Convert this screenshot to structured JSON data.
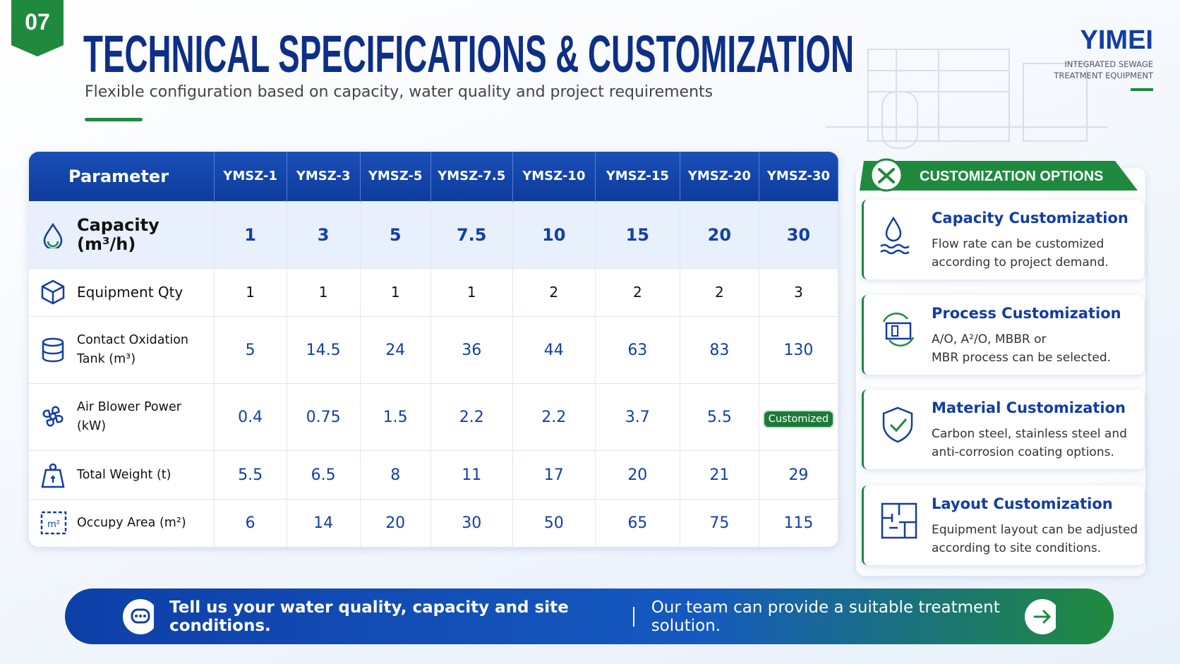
{
  "header": {
    "badge": "07",
    "title": "TECHNICAL SPECIFICATIONS & CUSTOMIZATION",
    "subtitle": "Flexible configuration based on capacity, water quality and project requirements"
  },
  "brand": {
    "name": "YIMEI",
    "tagline": [
      "INTEGRATED SEWAGE",
      "TREATMENT EQUIPMENT"
    ]
  },
  "table": {
    "columns": [
      "Parameter",
      "YMSZ-1",
      "YMSZ-3",
      "YMSZ-5",
      "YMSZ-7.5",
      "YMSZ-10",
      "YMSZ-15",
      "YMSZ-20",
      "YMSZ-30"
    ],
    "rows": [
      {
        "label": "Capacity (m³/h)",
        "values": [
          1,
          3,
          5,
          7.5,
          10,
          15,
          20,
          30
        ]
      },
      {
        "label": "Equipment Qty",
        "values": [
          1,
          1,
          1,
          1,
          2,
          2,
          2,
          3
        ]
      },
      {
        "label": "Contact Oxidation Tank (m³)",
        "values": [
          5,
          14.5,
          24,
          36,
          44,
          63,
          83,
          130
        ]
      },
      {
        "label": "Air Blower Power (kW)",
        "values": [
          0.4,
          0.75,
          1.5,
          2.2,
          2.2,
          3.7,
          5.5,
          "Customized"
        ]
      },
      {
        "label": "Total Weight (t)",
        "values": [
          5.5,
          6.5,
          8,
          11,
          17,
          20,
          21,
          29
        ]
      },
      {
        "label": "Occupy Area (m²)",
        "values": [
          6,
          14,
          20,
          30,
          50,
          65,
          75,
          115
        ]
      }
    ]
  },
  "customization": {
    "title": "CUSTOMIZATION OPTIONS",
    "items": [
      {
        "title": "Capacity Customization",
        "description": [
          "Flow rate can be customized",
          "according to project demand."
        ]
      },
      {
        "title": "Process Customization",
        "description": [
          "A/O, A²/O, MBBR or",
          "MBR process can be selected."
        ]
      },
      {
        "title": "Material Customization",
        "description": [
          "Carbon steel, stainless steel and",
          "anti-corrosion coating options."
        ]
      },
      {
        "title": "Layout Customization",
        "description": [
          "Equipment layout can be adjusted",
          "according to site conditions."
        ]
      }
    ]
  },
  "footer": {
    "message": "Tell us your water quality, capacity and site conditions.",
    "note": "Our team can provide a suitable treatment solution."
  }
}
